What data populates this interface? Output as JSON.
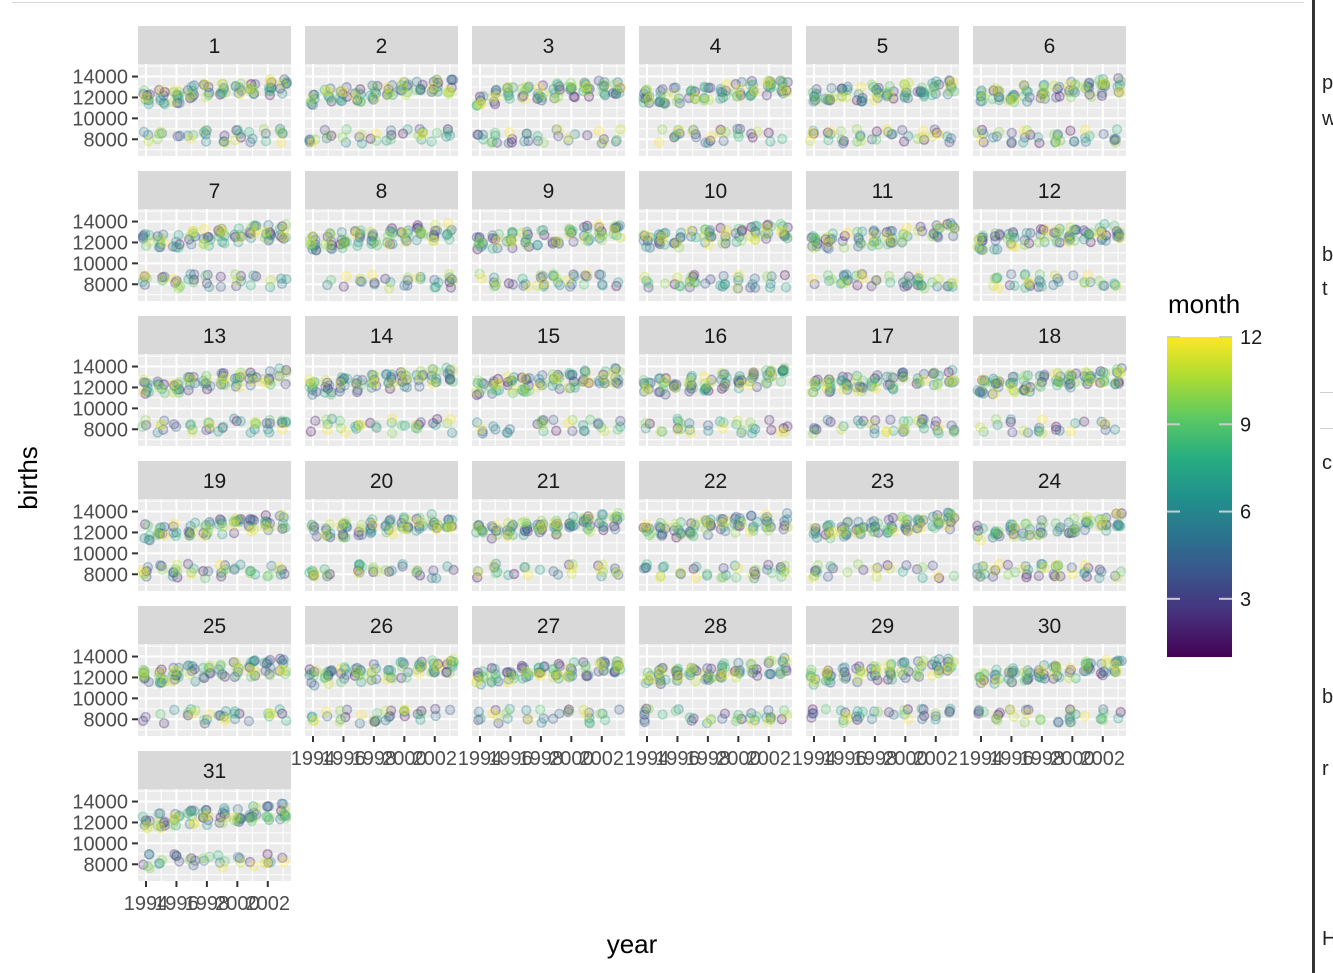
{
  "chart_data": {
    "type": "scatter",
    "facet_by": "day",
    "facets": [
      "1",
      "2",
      "3",
      "4",
      "5",
      "6",
      "7",
      "8",
      "9",
      "10",
      "11",
      "12",
      "13",
      "14",
      "15",
      "16",
      "17",
      "18",
      "19",
      "20",
      "21",
      "22",
      "23",
      "24",
      "25",
      "26",
      "27",
      "28",
      "29",
      "30",
      "31"
    ],
    "xlabel": "year",
    "ylabel": "births",
    "x_range": [
      1994,
      2003
    ],
    "x_ticks": [
      "1994",
      "1996",
      "1998",
      "2000",
      "2002"
    ],
    "ylim": [
      6400,
      15200
    ],
    "y_ticks": [
      "8000",
      "10000",
      "12000",
      "14000"
    ],
    "grid": true,
    "point_opacity": 0.2,
    "series_note_color": "month",
    "legend": {
      "title": "month",
      "type": "colorbar",
      "position": "right",
      "range": [
        1,
        12
      ],
      "ticks": [
        "3",
        "6",
        "9",
        "12"
      ],
      "low_color": "#440154",
      "high_color": "#fde725"
    },
    "clusters": {
      "weekday_level": 12000,
      "weekend_level": 8300,
      "yearly_trend_per_year": 120
    }
  },
  "right_strip_glyphs": [
    "p",
    "w",
    "b",
    "t",
    "c",
    "b",
    "r",
    "H"
  ]
}
